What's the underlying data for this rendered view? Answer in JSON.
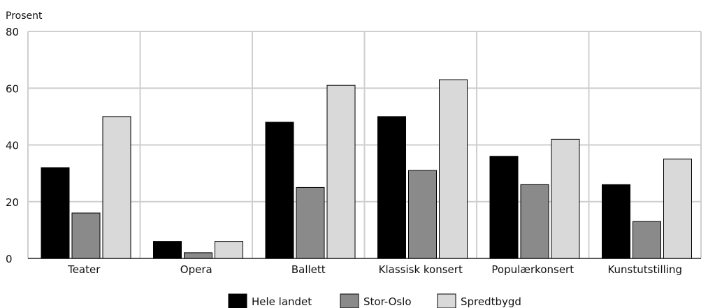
{
  "chart_data": {
    "type": "bar",
    "title": "",
    "ylabel": "Prosent",
    "xlabel": "",
    "ylim": [
      0,
      80
    ],
    "yticks": [
      0,
      20,
      40,
      60,
      80
    ],
    "grid": true,
    "legend_position": "bottom",
    "categories": [
      "Teater",
      "Opera",
      "Ballett",
      "Klassisk konsert",
      "Populærkonsert",
      "Kunstutstilling"
    ],
    "series": [
      {
        "name": "Hele landet",
        "color": "#000000",
        "values": [
          32,
          6,
          48,
          50,
          36,
          26
        ]
      },
      {
        "name": "Stor-Oslo",
        "color": "#8a8a8a",
        "values": [
          16,
          2,
          25,
          31,
          26,
          13
        ]
      },
      {
        "name": "Spredtbygd",
        "color": "#d9d9d9",
        "values": [
          50,
          6,
          61,
          63,
          42,
          35
        ]
      }
    ]
  }
}
